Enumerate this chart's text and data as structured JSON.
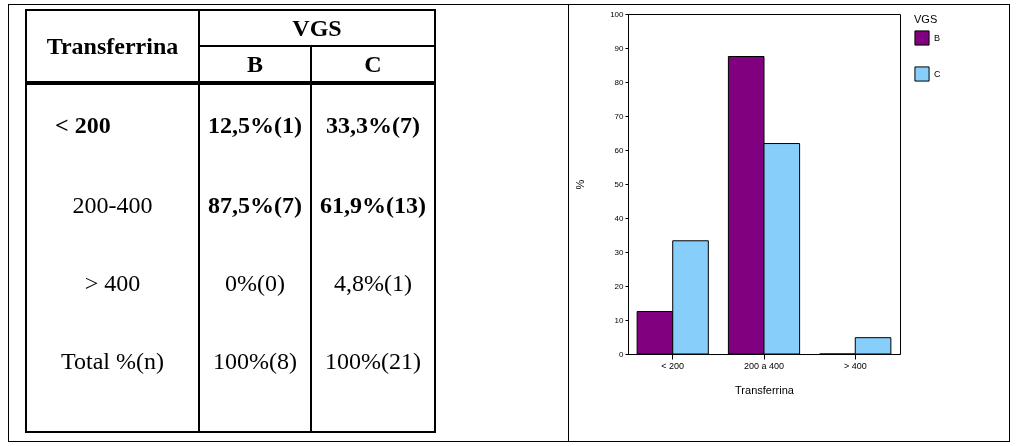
{
  "chart_data": [
    {
      "type": "other",
      "annotations": [
        "Transferrina",
        "VGS",
        "B",
        "C",
        "< 200",
        "12,5%(1)",
        "33,3%(7)",
        "200-400",
        "87,5%(7)",
        "61,9%(13)",
        "> 400",
        "0%(0)",
        "4,8%(1)",
        "Total %(n)",
        "100%(8)",
        "100%(21)"
      ]
    },
    {
      "type": "bar",
      "categories": [
        "< 200",
        "200 a 400",
        "> 400"
      ],
      "series": [
        {
          "name": "B",
          "color": "#800080",
          "values": [
            12.5,
            87.5,
            0
          ]
        },
        {
          "name": "C",
          "color": "#87cefa",
          "values": [
            33.3,
            61.9,
            4.8
          ]
        }
      ],
      "xlabel": "Transferrina",
      "ylabel": "%",
      "legend_title": "VGS",
      "legend": "right",
      "ylim": [
        0,
        100
      ],
      "yticks": [
        0,
        10,
        20,
        30,
        40,
        50,
        60,
        70,
        80,
        90,
        100
      ]
    }
  ]
}
